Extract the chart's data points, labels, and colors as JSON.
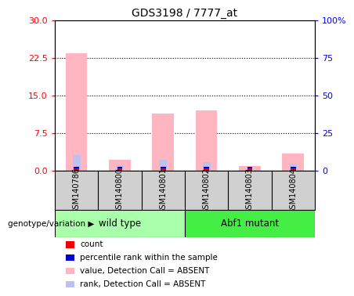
{
  "title": "GDS3198 / 7777_at",
  "samples": [
    "GSM140786",
    "GSM140800",
    "GSM140801",
    "GSM140802",
    "GSM140803",
    "GSM140804"
  ],
  "groups": [
    "wild type",
    "wild type",
    "wild type",
    "Abf1 mutant",
    "Abf1 mutant",
    "Abf1 mutant"
  ],
  "group_labels": [
    "wild type",
    "Abf1 mutant"
  ],
  "group_colors": [
    "#aaffaa",
    "#44ee44"
  ],
  "ylim_left": [
    0,
    30
  ],
  "ylim_right": [
    0,
    100
  ],
  "yticks_left": [
    0,
    7.5,
    15,
    22.5,
    30
  ],
  "yticks_right": [
    0,
    25,
    50,
    75,
    100
  ],
  "yticklabels_right": [
    "0",
    "25",
    "50",
    "75",
    "100%"
  ],
  "pink_bars": [
    23.5,
    2.2,
    11.5,
    12.0,
    1.0,
    3.5
  ],
  "lavender_bars": [
    3.2,
    1.2,
    2.3,
    1.8,
    0.25,
    1.5
  ],
  "red_tiny": [
    0.45,
    0.45,
    0.45,
    0.45,
    0.45,
    0.45
  ],
  "blue_tiny": [
    0.35,
    0.35,
    0.35,
    0.35,
    0.35,
    0.35
  ],
  "pink_color": "#ffb6c1",
  "lavender_color": "#c0c0f0",
  "red_color": "#ee0000",
  "blue_color": "#0000cc",
  "legend_items": [
    {
      "label": "count",
      "color": "#ee0000"
    },
    {
      "label": "percentile rank within the sample",
      "color": "#0000cc"
    },
    {
      "label": "value, Detection Call = ABSENT",
      "color": "#ffb6c1"
    },
    {
      "label": "rank, Detection Call = ABSENT",
      "color": "#c0c0f0"
    }
  ],
  "genotype_label": "genotype/variation",
  "sample_box_bg": "#d0d0d0",
  "plot_bg": "#ffffff"
}
